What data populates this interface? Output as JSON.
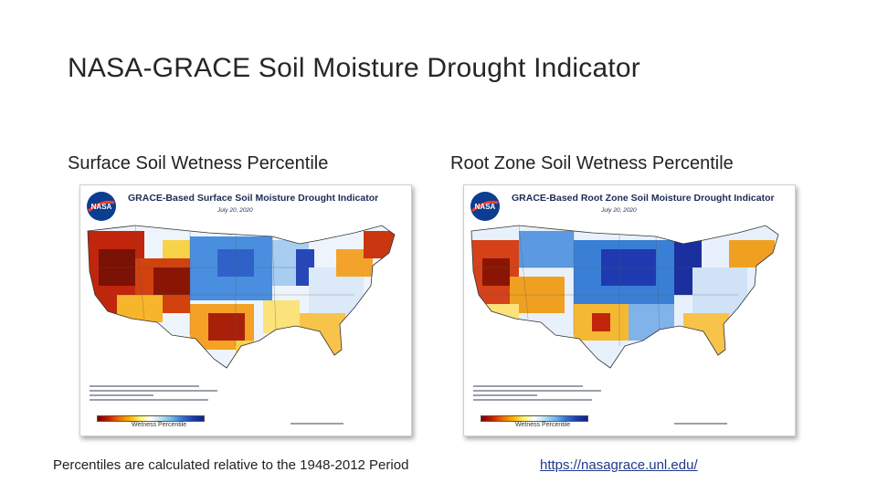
{
  "slide": {
    "title": "NASA-GRACE Soil Moisture Drought Indicator",
    "subtitle_left": "Surface Soil Wetness Percentile",
    "subtitle_right": "Root Zone Soil Wetness Percentile",
    "footnote": "Percentiles are calculated relative to the 1948-2012 Period",
    "link": "https://nasagrace.unl.edu/"
  },
  "maps": [
    {
      "title": "GRACE-Based Surface Soil Moisture Drought Indicator",
      "date": "July 20, 2020",
      "legend_label": "Wetness Percentile",
      "logo_text": "NASA"
    },
    {
      "title": "GRACE-Based Root Zone Soil Moisture Drought Indicator",
      "date": "July 20, 2020",
      "legend_label": "Wetness Percentile",
      "logo_text": "NASA"
    }
  ],
  "colors": {
    "dry": "#b5200a",
    "very_dry": "#6e0f05",
    "moderate_dry": "#f0a020",
    "wet": "#3a7fd6",
    "very_wet": "#1f3ab0",
    "link": "#1f3a8a"
  }
}
